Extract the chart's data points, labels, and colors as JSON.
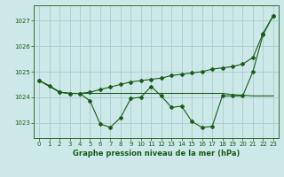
{
  "background_color": "#cce8e8",
  "grid_color": "#aacccc",
  "line_color": "#1a5c1a",
  "xlabel": "Graphe pression niveau de la mer (hPa)",
  "xlim": [
    -0.5,
    23.5
  ],
  "ylim": [
    1022.4,
    1027.6
  ],
  "yticks": [
    1023,
    1024,
    1025,
    1026,
    1027
  ],
  "xticks": [
    0,
    1,
    2,
    3,
    4,
    5,
    6,
    7,
    8,
    9,
    10,
    11,
    12,
    13,
    14,
    15,
    16,
    17,
    18,
    19,
    20,
    21,
    22,
    23
  ],
  "wavy_x": [
    0,
    1,
    2,
    3,
    4,
    5,
    6,
    7,
    8,
    9,
    10,
    11,
    12,
    13,
    14,
    15,
    16,
    17,
    18,
    19,
    20,
    21,
    22,
    23
  ],
  "wavy_y": [
    1024.65,
    1024.45,
    1024.2,
    1024.15,
    1024.15,
    1023.85,
    1022.95,
    1022.82,
    1023.2,
    1023.95,
    1024.0,
    1024.42,
    1024.05,
    1023.6,
    1023.65,
    1023.05,
    1022.82,
    1022.85,
    1024.05,
    1024.05,
    1024.05,
    1025.0,
    1026.45,
    1027.2
  ],
  "trend_x": [
    0,
    2,
    3,
    4,
    5,
    6,
    7,
    8,
    9,
    10,
    11,
    12,
    13,
    14,
    15,
    16,
    17,
    18,
    19,
    20,
    21,
    22,
    23
  ],
  "trend_y": [
    1024.65,
    1024.2,
    1024.15,
    1024.15,
    1024.2,
    1024.3,
    1024.4,
    1024.5,
    1024.6,
    1024.65,
    1024.7,
    1024.75,
    1024.85,
    1024.9,
    1024.95,
    1025.0,
    1025.1,
    1025.15,
    1025.2,
    1025.3,
    1025.55,
    1026.5,
    1027.2
  ],
  "flat_x": [
    0,
    1,
    2,
    3,
    4,
    5,
    6,
    7,
    8,
    9,
    10,
    11,
    12,
    13,
    14,
    15,
    16,
    17,
    18,
    19,
    20,
    21,
    22,
    23
  ],
  "flat_y": [
    1024.65,
    1024.45,
    1024.2,
    1024.15,
    1024.15,
    1024.15,
    1024.15,
    1024.15,
    1024.15,
    1024.15,
    1024.15,
    1024.15,
    1024.15,
    1024.15,
    1024.15,
    1024.15,
    1024.15,
    1024.15,
    1024.15,
    1024.1,
    1024.08,
    1024.05,
    1024.05,
    1024.05
  ]
}
